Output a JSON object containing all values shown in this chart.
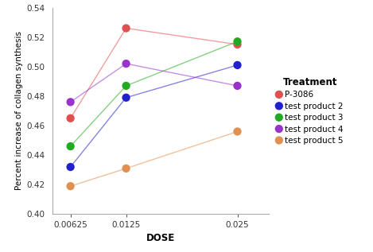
{
  "doses": [
    0.00625,
    0.0125,
    0.025
  ],
  "series": [
    {
      "label": "P-3086",
      "color": "#e05050",
      "values": [
        0.465,
        0.526,
        0.515
      ]
    },
    {
      "label": "test product 2",
      "color": "#2020cc",
      "values": [
        0.432,
        0.479,
        0.501
      ]
    },
    {
      "label": "test product 3",
      "color": "#22aa22",
      "values": [
        0.446,
        0.487,
        0.517
      ]
    },
    {
      "label": "test product 4",
      "color": "#9933cc",
      "values": [
        0.476,
        0.502,
        0.487
      ]
    },
    {
      "label": "test product 5",
      "color": "#e09050",
      "values": [
        0.419,
        0.431,
        0.456
      ]
    }
  ],
  "xlabel": "DOSE",
  "ylabel": "Percent increase of collagen synthesis",
  "legend_title": "Treatment",
  "ylim": [
    0.4,
    0.54
  ],
  "yticks": [
    0.4,
    0.42,
    0.44,
    0.46,
    0.48,
    0.5,
    0.52,
    0.54
  ],
  "xticks": [
    0.00625,
    0.0125,
    0.025
  ],
  "xtick_labels": [
    "0.00625",
    "0.0125",
    "0.025"
  ],
  "marker_size": 55,
  "linewidth": 1.0,
  "line_alpha": 0.55,
  "background_color": "#ffffff",
  "plot_bg_color": "#ffffff"
}
